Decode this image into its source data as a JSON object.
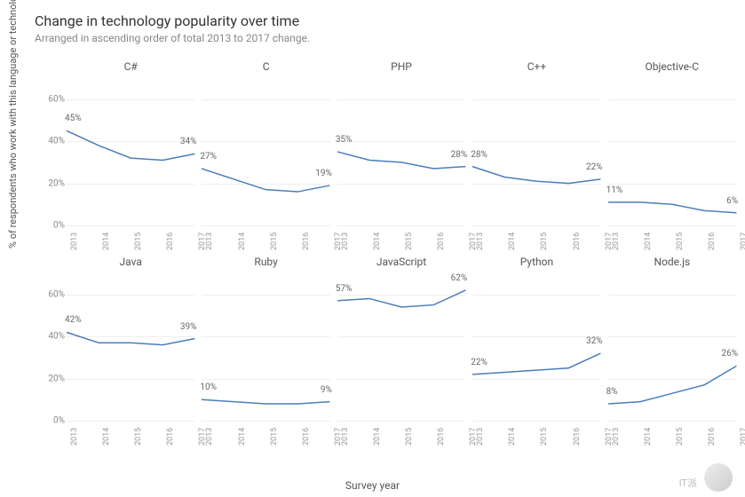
{
  "title": "Change in technology popularity over time",
  "subtitle": "Arranged in ascending order of total 2013 to 2017 change.",
  "y_axis_label": "% of respondents who work with this language or technology",
  "x_axis_label": "Survey year",
  "watermark": "IT派",
  "chart": {
    "type": "line-small-multiples",
    "rows": 2,
    "cols": 5,
    "x": [
      2013,
      2014,
      2015,
      2016,
      2017
    ],
    "ylim": [
      0,
      70
    ],
    "yticks": [
      0,
      20,
      40,
      60
    ],
    "line_color": "#4a7ebb",
    "line_width": 1.5,
    "grid_color": "#eeeeee",
    "tick_color": "#888888",
    "panel_title_color": "#555555",
    "label_fontsize": 10,
    "tick_fontsize": 10,
    "panel_title_fontsize": 12,
    "background_color": "#ffffff",
    "panels": [
      {
        "title": "C#",
        "values": [
          45,
          38,
          32,
          31,
          34
        ],
        "start_label": "45%",
        "end_label": "34%"
      },
      {
        "title": "C",
        "values": [
          27,
          22,
          17,
          16,
          19
        ],
        "start_label": "27%",
        "end_label": "19%"
      },
      {
        "title": "PHP",
        "values": [
          35,
          31,
          30,
          27,
          28
        ],
        "start_label": "35%",
        "end_label": "28%"
      },
      {
        "title": "C++",
        "values": [
          28,
          23,
          21,
          20,
          22
        ],
        "start_label": "28%",
        "end_label": "22%"
      },
      {
        "title": "Objective-C",
        "values": [
          11,
          11,
          10,
          7,
          6
        ],
        "start_label": "11%",
        "end_label": "6%"
      },
      {
        "title": "Java",
        "values": [
          42,
          37,
          37,
          36,
          39
        ],
        "start_label": "42%",
        "end_label": "39%"
      },
      {
        "title": "Ruby",
        "values": [
          10,
          9,
          8,
          8,
          9
        ],
        "start_label": "10%",
        "end_label": "9%"
      },
      {
        "title": "JavaScript",
        "values": [
          57,
          58,
          54,
          55,
          62
        ],
        "start_label": "57%",
        "end_label": "62%"
      },
      {
        "title": "Python",
        "values": [
          22,
          23,
          24,
          25,
          32
        ],
        "start_label": "22%",
        "end_label": "32%"
      },
      {
        "title": "Node.js",
        "values": [
          8,
          9,
          13,
          17,
          26
        ],
        "start_label": "8%",
        "end_label": "26%"
      }
    ]
  }
}
